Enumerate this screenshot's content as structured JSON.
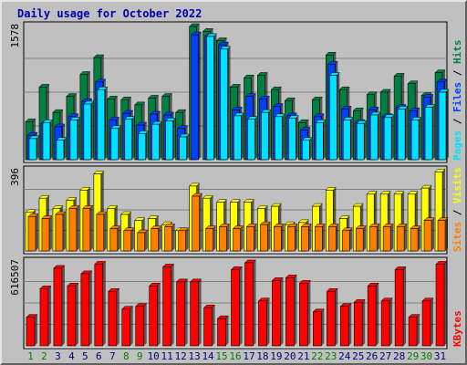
{
  "window": {
    "title": "Daily usage for October 2022"
  },
  "colors": {
    "background": "#c0c0c0",
    "panel": "#c0c0c0",
    "grid": "#808080",
    "hits": "#008040",
    "files": "#0040ff",
    "pages": "#00e0ff",
    "visits": "#ffff00",
    "sites": "#ff8000",
    "kbytes": "#ff0000",
    "title": "#0000b0",
    "weekday_label": "#000080",
    "weekend_label": "#008000"
  },
  "chart_data": [
    {
      "type": "bar",
      "title": "",
      "ylabel_parts": [
        "Pages",
        "Files",
        "Hits"
      ],
      "ymax_label": "1578",
      "ylim": [
        0,
        1578
      ],
      "grid": true,
      "categories": [
        "1",
        "2",
        "3",
        "4",
        "5",
        "6",
        "7",
        "8",
        "9",
        "10",
        "11",
        "12",
        "13",
        "14",
        "15",
        "16",
        "17",
        "18",
        "19",
        "20",
        "21",
        "22",
        "23",
        "24",
        "25",
        "26",
        "27",
        "28",
        "29",
        "30",
        "31"
      ],
      "series": [
        {
          "name": "Hits",
          "values": [
            450,
            860,
            560,
            750,
            1010,
            1210,
            720,
            710,
            650,
            730,
            750,
            560,
            1578,
            1520,
            1410,
            860,
            970,
            1000,
            830,
            700,
            440,
            710,
            1240,
            830,
            580,
            770,
            800,
            990,
            900,
            760,
            1030
          ]
        },
        {
          "name": "Files",
          "values": [
            290,
            430,
            390,
            510,
            690,
            920,
            470,
            550,
            410,
            540,
            530,
            370,
            1480,
            1460,
            1360,
            590,
            750,
            720,
            630,
            520,
            350,
            510,
            1130,
            600,
            440,
            590,
            510,
            620,
            580,
            740,
            920
          ]
        },
        {
          "name": "Pages",
          "values": [
            250,
            440,
            230,
            470,
            660,
            830,
            370,
            480,
            310,
            420,
            460,
            270,
            0,
            1460,
            1310,
            520,
            480,
            560,
            510,
            490,
            230,
            440,
            1000,
            470,
            430,
            530,
            500,
            600,
            470,
            620,
            800
          ]
        }
      ],
      "weekends": [
        "1",
        "2",
        "8",
        "9",
        "15",
        "16",
        "22",
        "23",
        "29",
        "30"
      ]
    },
    {
      "type": "bar",
      "title": "",
      "ylabel_parts": [
        "Sites",
        "Visits"
      ],
      "ymax_label": "396",
      "ylim": [
        0,
        396
      ],
      "grid": true,
      "categories": [
        "1",
        "2",
        "3",
        "4",
        "5",
        "6",
        "7",
        "8",
        "9",
        "10",
        "11",
        "12",
        "13",
        "14",
        "15",
        "16",
        "17",
        "18",
        "19",
        "20",
        "21",
        "22",
        "23",
        "24",
        "25",
        "26",
        "27",
        "28",
        "29",
        "30",
        "31"
      ],
      "series": [
        {
          "name": "Visits",
          "values": [
            190,
            260,
            210,
            250,
            300,
            380,
            210,
            180,
            150,
            160,
            130,
            100,
            320,
            260,
            240,
            240,
            240,
            210,
            220,
            130,
            140,
            220,
            300,
            160,
            220,
            280,
            280,
            280,
            280,
            310,
            390
          ]
        },
        {
          "name": "Sites",
          "values": [
            170,
            160,
            180,
            210,
            210,
            180,
            110,
            100,
            90,
            110,
            120,
            100,
            270,
            110,
            120,
            110,
            120,
            130,
            120,
            120,
            120,
            120,
            120,
            100,
            110,
            120,
            120,
            120,
            110,
            150,
            150
          ]
        }
      ]
    },
    {
      "type": "bar",
      "title": "",
      "ylabel": "KBytes",
      "ymax_label": "616507",
      "ylim": [
        0,
        616507
      ],
      "grid": true,
      "categories": [
        "1",
        "2",
        "3",
        "4",
        "5",
        "6",
        "7",
        "8",
        "9",
        "10",
        "11",
        "12",
        "13",
        "14",
        "15",
        "16",
        "17",
        "18",
        "19",
        "20",
        "21",
        "22",
        "23",
        "24",
        "25",
        "26",
        "27",
        "28",
        "29",
        "30",
        "31"
      ],
      "series": [
        {
          "name": "KBytes",
          "values": [
            210000,
            420000,
            570000,
            440000,
            530000,
            600000,
            400000,
            270000,
            290000,
            440000,
            580000,
            470000,
            470000,
            280000,
            200000,
            560000,
            610000,
            330000,
            480000,
            500000,
            460000,
            250000,
            400000,
            290000,
            320000,
            440000,
            330000,
            560000,
            210000,
            330000,
            600000
          ]
        }
      ]
    }
  ]
}
